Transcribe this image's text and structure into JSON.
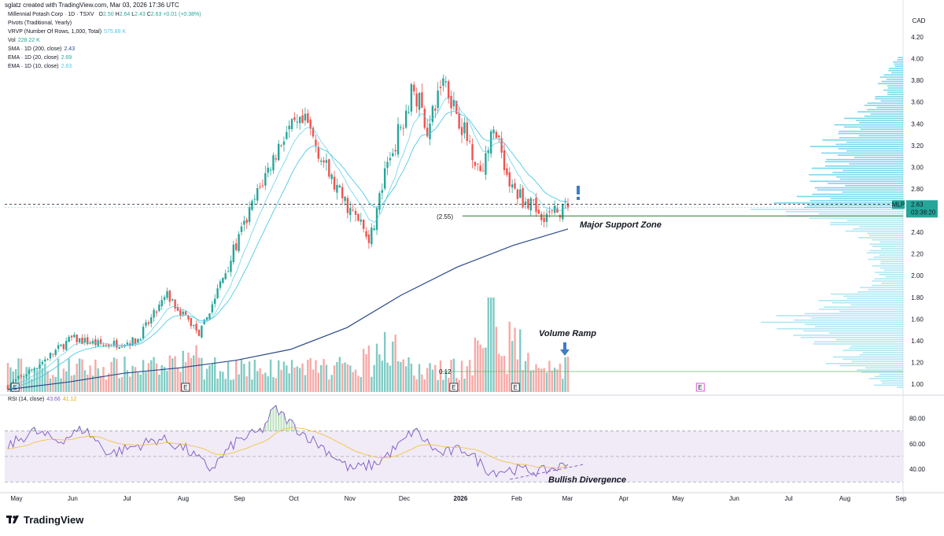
{
  "header": {
    "caption": "sglatz created with TradingView.com, Mar 03, 2026 17:36 UTC",
    "currency": "CAD"
  },
  "legend": {
    "symbol_line": {
      "name": "Millennial Potash Corp · 1D · TSXV",
      "o_label": "O",
      "o": "2.50",
      "h_label": "H",
      "h": "2.64",
      "l_label": "L",
      "l": "2.43",
      "c_label": "C",
      "c": "2.63",
      "change": "+0.01 (+0.38%)"
    },
    "pivots": "Pivots (Traditional, Yearly)",
    "vrvp": {
      "label": "VRVP (Number Of Rows, 1,000, Total)",
      "value": "575.88 K"
    },
    "vol": {
      "label": "Vol",
      "value": "228.22 K"
    },
    "sma": {
      "label": "SMA · 1D (200, close)",
      "value": "2.43"
    },
    "ema20": {
      "label": "EMA · 1D (20, close)",
      "value": "2.69"
    },
    "ema10": {
      "label": "EMA · 1D (10, close)",
      "value": "2.63"
    },
    "rsi": {
      "label": "RSI (14, close)",
      "value": "43.66",
      "value2": "41.12"
    }
  },
  "price_badge": {
    "symbol": "MLP",
    "price": "2.63",
    "countdown": "03:38:20"
  },
  "annotations": {
    "support": "Major Support Zone",
    "support_level": "(2.55)",
    "volume": "Volume Ramp",
    "divergence": "Bullish Divergence",
    "volume_level": "0.12"
  },
  "footer": {
    "brand": "TradingView"
  },
  "colors": {
    "up": "#26a69a",
    "down": "#ef5350",
    "up_vol": "#80cbc4",
    "down_vol": "#f7a9a7",
    "ema": "#4dc9e6",
    "sma": "#2a4a8a",
    "rsi": "#7e57c2",
    "rsi_ma": "#f5c242",
    "rsi_band": "#ede7f6",
    "vrvp": "#4dc9e6",
    "arrow": "#3d7cc9"
  },
  "chart_data": [
    {
      "type": "candlestick",
      "title": "Millennial Potash Corp · 1D · TSXV",
      "ylabel": "CAD",
      "y_ticks": [
        "4.20",
        "4.00",
        "3.80",
        "3.60",
        "3.40",
        "3.20",
        "3.00",
        "2.80",
        "2.60",
        "2.40",
        "2.20",
        "2.00",
        "1.80",
        "1.60",
        "1.40",
        "1.20",
        "1.00"
      ],
      "x_ticks": [
        "May",
        "Jun",
        "Jul",
        "Aug",
        "Sep",
        "Oct",
        "Nov",
        "Dec",
        "2026",
        "Feb",
        "Mar",
        "Apr",
        "May",
        "Jun",
        "Jul",
        "Aug",
        "Sep"
      ],
      "ylim": [
        0.95,
        4.25
      ],
      "support_level": 2.55,
      "last_price": 2.63,
      "price_path": [
        {
          "x": "2025-04-28",
          "y": 0.98
        },
        {
          "x": "2025-05-15",
          "y": 1.18
        },
        {
          "x": "2025-06-02",
          "y": 1.42
        },
        {
          "x": "2025-06-20",
          "y": 1.36
        },
        {
          "x": "2025-07-08",
          "y": 1.4
        },
        {
          "x": "2025-07-25",
          "y": 1.82
        },
        {
          "x": "2025-08-12",
          "y": 1.46
        },
        {
          "x": "2025-08-28",
          "y": 2.12
        },
        {
          "x": "2025-09-15",
          "y": 2.85
        },
        {
          "x": "2025-09-28",
          "y": 3.32
        },
        {
          "x": "2025-10-10",
          "y": 3.4
        },
        {
          "x": "2025-10-24",
          "y": 2.86
        },
        {
          "x": "2025-11-05",
          "y": 2.55
        },
        {
          "x": "2025-11-14",
          "y": 2.35
        },
        {
          "x": "2025-11-24",
          "y": 3.05
        },
        {
          "x": "2025-12-08",
          "y": 3.75
        },
        {
          "x": "2025-12-16",
          "y": 3.32
        },
        {
          "x": "2025-12-24",
          "y": 3.85
        },
        {
          "x": "2026-01-05",
          "y": 3.32
        },
        {
          "x": "2026-01-14",
          "y": 2.98
        },
        {
          "x": "2026-01-22",
          "y": 3.38
        },
        {
          "x": "2026-01-30",
          "y": 2.82
        },
        {
          "x": "2026-02-12",
          "y": 2.62
        },
        {
          "x": "2026-02-20",
          "y": 2.55
        },
        {
          "x": "2026-03-03",
          "y": 2.63
        }
      ],
      "sma200_path": [
        {
          "x": "2025-04-28",
          "y": 0.95
        },
        {
          "x": "2025-06-01",
          "y": 1.02
        },
        {
          "x": "2025-07-01",
          "y": 1.1
        },
        {
          "x": "2025-08-01",
          "y": 1.15
        },
        {
          "x": "2025-09-01",
          "y": 1.22
        },
        {
          "x": "2025-10-01",
          "y": 1.32
        },
        {
          "x": "2025-11-01",
          "y": 1.52
        },
        {
          "x": "2025-12-01",
          "y": 1.82
        },
        {
          "x": "2026-01-01",
          "y": 2.08
        },
        {
          "x": "2026-02-01",
          "y": 2.28
        },
        {
          "x": "2026-03-03",
          "y": 2.43
        }
      ],
      "ema20_last": 2.69,
      "ema10_last": 2.63,
      "sma200_last": 2.43
    },
    {
      "type": "line",
      "title": "RSI (14, close)",
      "y_ticks": [
        "80.00",
        "60.00",
        "40.00"
      ],
      "ylim": [
        24,
        92
      ],
      "bands": [
        70,
        50,
        30
      ],
      "rsi_path": [
        {
          "x": "2025-04-28",
          "y": 58
        },
        {
          "x": "2025-05-12",
          "y": 70
        },
        {
          "x": "2025-05-26",
          "y": 62
        },
        {
          "x": "2025-06-09",
          "y": 72
        },
        {
          "x": "2025-06-23",
          "y": 52
        },
        {
          "x": "2025-07-07",
          "y": 58
        },
        {
          "x": "2025-07-21",
          "y": 64
        },
        {
          "x": "2025-08-04",
          "y": 56
        },
        {
          "x": "2025-08-18",
          "y": 40
        },
        {
          "x": "2025-09-01",
          "y": 62
        },
        {
          "x": "2025-09-15",
          "y": 70
        },
        {
          "x": "2025-09-22",
          "y": 88
        },
        {
          "x": "2025-10-06",
          "y": 70
        },
        {
          "x": "2025-10-20",
          "y": 56
        },
        {
          "x": "2025-11-03",
          "y": 40
        },
        {
          "x": "2025-11-17",
          "y": 44
        },
        {
          "x": "2025-12-01",
          "y": 60
        },
        {
          "x": "2025-12-08",
          "y": 71
        },
        {
          "x": "2025-12-22",
          "y": 52
        },
        {
          "x": "2026-01-05",
          "y": 56
        },
        {
          "x": "2026-01-19",
          "y": 38
        },
        {
          "x": "2026-02-02",
          "y": 40
        },
        {
          "x": "2026-02-16",
          "y": 38
        },
        {
          "x": "2026-03-03",
          "y": 43.66
        }
      ],
      "rsi_ma_last": 41.12
    }
  ]
}
